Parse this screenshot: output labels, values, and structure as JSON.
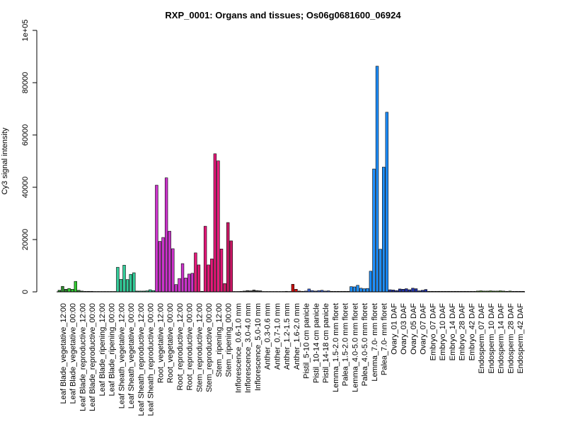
{
  "chart_data": {
    "type": "bar",
    "title": "RXP_0001: Organs and tissues; Os06g0681600_06924",
    "xlabel": "",
    "ylabel": "Cy3 signal intensity",
    "ylim": [
      0,
      100000
    ],
    "yticks": [
      0,
      20000,
      40000,
      60000,
      80000,
      100000
    ],
    "ytick_labels": [
      "0",
      "20000",
      "40000",
      "60000",
      "80000",
      "1e+05"
    ],
    "grid": false,
    "legend": "none",
    "categories": [
      "Leaf Blade_vegetative_12:00",
      "Leaf Blade_vegetative_00:00",
      "Leaf Blade_reproductive_12:00",
      "Leaf Blade_reproductive_00:00",
      "Leaf Blade_ripening_12:00",
      "Leaf Blade_ripening_00:00",
      "Leaf Sheath_vegetative_12:00",
      "Leaf Sheath_vegetative_00:00",
      "Leaf Sheath_reproductive_12:00",
      "Leaf Sheath_reproductive_00:00",
      "Root_vegetative_12:00",
      "Root_vegetative_00:00",
      "Root_reproductive_12:00",
      "Root_reproductive_00:00",
      "Stem_reproductive_12:00",
      "Stem_reproductive_00:00",
      "Stem_ripening_12:00",
      "Stem_ripening_00:00",
      "Inflorescence_0.6-1.0 mm",
      "Inflorescence_3.0-4.0 mm",
      "Inflorescence_5.0-10 mm",
      "Anther_0.3-0.6 mm",
      "Anther_0.7-1.0 mm",
      "Anther_1.2-1.5 mm",
      "Anther_1.6-2.0 mm",
      "Pistil_5-10 cm panicle",
      "Pistil_10-14 cm panicle",
      "Pistil_14-18 cm panicle",
      "Lemma_1.5-2.0 mm floret",
      "Palea_1.5-2.0 mm floret",
      "Lemma_4.0-5.0 mm floret",
      "Palea_4.0-5.0 mm floret",
      "Lemma_7.0- mm floret",
      "Palea_7.0- mm floret",
      "Ovary_01 DAF",
      "Ovary_03 DAF",
      "Ovary_05 DAF",
      "Ovary_07 DAF",
      "Embryo_07 DAF",
      "Embryo_10 DAF",
      "Embryo_14 DAF",
      "Embryo_28 DAF",
      "Embryo_42 DAF",
      "Endosperm_07 DAF",
      "Endosperm_10 DAF",
      "Endosperm_14 DAF",
      "Endosperm_28 DAF",
      "Endosperm_42 DAF"
    ],
    "bar_groups": [
      {
        "values": [
          600,
          2100,
          1000
        ],
        "color": "#2e8b2e"
      },
      {
        "values": [
          1300,
          1000,
          4000
        ],
        "color": "#33cc33"
      },
      {
        "values": [
          600,
          300,
          200
        ],
        "color": "#2e8b2e"
      },
      {
        "values": [
          200,
          200,
          150
        ],
        "color": "#33cc33"
      },
      {
        "values": [
          150,
          150,
          150
        ],
        "color": "#2e8b2e"
      },
      {
        "values": [
          150,
          150,
          150
        ],
        "color": "#33cc33"
      },
      {
        "values": [
          9400,
          4800,
          10200
        ],
        "color": "#33cc99"
      },
      {
        "values": [
          4700,
          6700,
          7300
        ],
        "color": "#33cc99"
      },
      {
        "values": [
          300,
          300,
          300
        ],
        "color": "#33cc99"
      },
      {
        "values": [
          400,
          800,
          500
        ],
        "color": "#33cc99"
      },
      {
        "values": [
          40800,
          19300,
          20800
        ],
        "color": "#cc33cc"
      },
      {
        "values": [
          43600,
          23200,
          16500
        ],
        "color": "#cc33cc"
      },
      {
        "values": [
          2800,
          5100,
          10800
        ],
        "color": "#cc33cc"
      },
      {
        "values": [
          5300,
          6800,
          7100
        ],
        "color": "#cc33cc"
      },
      {
        "values": [
          14900,
          10300,
          200
        ],
        "color": "#e6197a"
      },
      {
        "values": [
          25100,
          10300,
          12600
        ],
        "color": "#e6197a"
      },
      {
        "values": [
          52800,
          50100,
          16400
        ],
        "color": "#e6197a"
      },
      {
        "values": [
          3200,
          26500,
          19500
        ],
        "color": "#cc1966"
      },
      {
        "values": [
          150,
          150,
          200
        ],
        "color": "#444444"
      },
      {
        "values": [
          300,
          500,
          400
        ],
        "color": "#444444"
      },
      {
        "values": [
          700,
          500,
          400
        ],
        "color": "#444444"
      },
      {
        "values": [
          150,
          150,
          150
        ],
        "color": "#444444"
      },
      {
        "values": [
          150,
          150,
          150
        ],
        "color": "#444444"
      },
      {
        "values": [
          150,
          200,
          150
        ],
        "color": "#444444"
      },
      {
        "values": [
          2900,
          1000,
          300
        ],
        "color": "#cc1111"
      },
      {
        "values": [
          200,
          300,
          1100
        ],
        "color": "#4169e1"
      },
      {
        "values": [
          500,
          300,
          500
        ],
        "color": "#4169e1"
      },
      {
        "values": [
          600,
          300,
          400
        ],
        "color": "#4169e1"
      },
      {
        "values": [
          200,
          200,
          200
        ],
        "color": "#1e90ff"
      },
      {
        "values": [
          200,
          200,
          200
        ],
        "color": "#1e90ff"
      },
      {
        "values": [
          2000,
          1900,
          2500
        ],
        "color": "#1e90ff"
      },
      {
        "values": [
          1400,
          1200,
          1300
        ],
        "color": "#1e90ff"
      },
      {
        "values": [
          7900,
          47000,
          86300
        ],
        "color": "#1e90ff"
      },
      {
        "values": [
          16300,
          47700,
          68700
        ],
        "color": "#1e90ff"
      },
      {
        "values": [
          800,
          700,
          500
        ],
        "color": "#2233aa"
      },
      {
        "values": [
          1100,
          1000,
          1200
        ],
        "color": "#2233aa"
      },
      {
        "values": [
          800,
          1400,
          1200
        ],
        "color": "#2233aa"
      },
      {
        "values": [
          400,
          600,
          900
        ],
        "color": "#2233aa"
      },
      {
        "values": [
          200,
          200,
          200
        ],
        "color": "#8b2020"
      },
      {
        "values": [
          200,
          200,
          200
        ],
        "color": "#8b2020"
      },
      {
        "values": [
          200,
          200,
          200
        ],
        "color": "#8b2020"
      },
      {
        "values": [
          200,
          200,
          200
        ],
        "color": "#8b2020"
      },
      {
        "values": [
          200,
          200,
          200
        ],
        "color": "#8b2020"
      },
      {
        "values": [
          300,
          400,
          300
        ],
        "color": "#55aa22"
      },
      {
        "values": [
          300,
          400,
          300
        ],
        "color": "#55aa22"
      },
      {
        "values": [
          300,
          400,
          300
        ],
        "color": "#55aa22"
      },
      {
        "values": [
          200,
          300,
          200
        ],
        "color": "#55aa22"
      },
      {
        "values": [
          200,
          200,
          200
        ],
        "color": "#55aa22"
      }
    ]
  }
}
